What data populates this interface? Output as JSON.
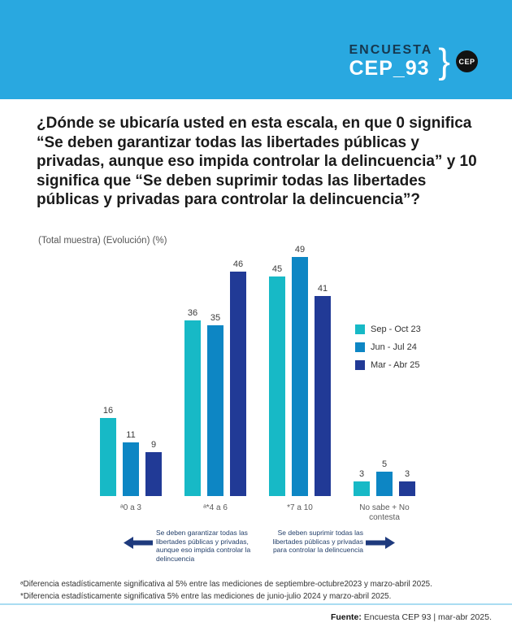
{
  "header": {
    "brand_top": "ENCUESTA",
    "brand_bottom": "CEP_93",
    "brand_bracket": "}",
    "badge": "CEP",
    "bg_color": "#29a8e0"
  },
  "title": "¿Dónde se ubicaría usted en esta escala, en que 0 significa “Se deben garantizar todas las libertades públicas y privadas, aunque eso impida controlar la delincuencia” y 10 significa que “Se deben suprimir todas las libertades públicas y privadas para controlar la delincuencia”?",
  "subtitle": "(Total muestra) (Evolución) (%)",
  "chart_data": {
    "type": "bar",
    "categories": [
      "ᵃ0 a 3",
      "ᵃ*4 a 6",
      "*7 a 10",
      "No sabe + No contesta"
    ],
    "series": [
      {
        "name": "Sep - Oct 23",
        "color": "#17b9c6",
        "values": [
          16,
          36,
          45,
          3
        ]
      },
      {
        "name": "Jun - Jul 24",
        "color": "#0d86c4",
        "values": [
          11,
          35,
          49,
          5
        ]
      },
      {
        "name": "Mar - Abr 25",
        "color": "#213a96",
        "values": [
          9,
          46,
          41,
          3
        ]
      }
    ],
    "ylim": [
      0,
      52
    ],
    "grid": false,
    "legend_position": "right",
    "value_labels": true
  },
  "annotations": {
    "left_arrow_text": "Se deben garantizar todas las libertades públicas y privadas, aunque eso impida controlar la delincuencia",
    "right_arrow_text": "Se deben suprimir todas las libertades públicas y privadas para controlar la delincuencia",
    "arrow_color": "#1e3a7d"
  },
  "footnotes": [
    "ᵃDiferencia estadísticamente significativa al 5% entre las mediciones de septiembre-octubre2023 y marzo-abril 2025.",
    "*Diferencia estadísticamente significativa 5% entre las mediciones de junio-julio 2024 y marzo-abril 2025."
  ],
  "footer": {
    "source_label": "Fuente:",
    "source_text": " Encuesta CEP 93 | mar-abr 2025."
  }
}
